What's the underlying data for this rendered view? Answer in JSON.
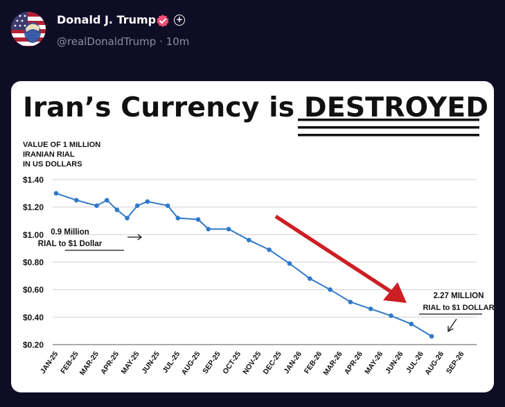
{
  "post": {
    "author_name": "Donald J. Trump",
    "handle": "@realDonaldTrump",
    "separator": "·",
    "time": "10m",
    "avatar_icon": "flag-portrait-avatar",
    "verified_icon": "verified-badge-icon",
    "follow_icon": "plus-circle-icon",
    "colors": {
      "background": "#0f0d26",
      "verified": "#f04e74"
    }
  },
  "infographic": {
    "title_prefix": "Iran’s Currency is ",
    "title_emphasis": "DESTROYED",
    "note_left_line1": "0.9 Million",
    "note_left_line2": "RIAL to $1 Dollar",
    "note_right_line1": "2.27 MILLION",
    "note_right_line2": "RIAL to $1 DOLLAR",
    "trend_arrow_color": "#cc1f24",
    "line_color": "#2f79c8"
  },
  "chart_data": {
    "type": "line",
    "title": "Iran’s Currency is DESTROYED",
    "ylabel_lines": [
      "VALUE OF 1 MILLION",
      "IRANIAN RIAL",
      "IN US DOLLARS"
    ],
    "xlabel": "",
    "ylim": [
      0.2,
      1.4
    ],
    "yticks": [
      1.4,
      1.2,
      1.0,
      0.8,
      0.6,
      0.4,
      0.2
    ],
    "ytick_labels": [
      "$1.40",
      "$1.20",
      "$1.00",
      "$0.80",
      "$0.60",
      "$0.40",
      "$0.20"
    ],
    "grid": true,
    "categories": [
      "JAN-25",
      "FEB-25",
      "MAR-25",
      "APR-25",
      "MAY-25",
      "JUN-25",
      "JUL-25",
      "AUG-25",
      "SEP-25",
      "OCT-25",
      "NOV-25",
      "DEC-25",
      "JAN-26",
      "FEB-26",
      "MAR-26",
      "APR-26",
      "MAY-26",
      "JUN-26",
      "JUL-26",
      "AUG-26",
      "SEP-26"
    ],
    "series": [
      {
        "values": [
          1.3,
          1.25,
          1.21,
          1.25,
          1.18,
          1.12,
          1.21,
          1.24,
          1.21,
          1.12,
          1.11,
          1.04,
          1.04,
          0.96,
          0.89,
          0.79,
          0.68,
          0.6,
          0.51,
          0.46,
          0.41,
          0.35,
          0.26
        ],
        "x": [
          "JAN-25",
          "FEB-25",
          "MAR-25",
          "MAR-25+",
          "APR-25",
          "APR-25+",
          "MAY-25",
          "MAY-25+",
          "JUN-25+",
          "JUL-25",
          "AUG-25",
          "AUG-25+",
          "SEP-25+",
          "OCT-25+",
          "NOV-25+",
          "DEC-25+",
          "JAN-26+",
          "FEB-26+",
          "MAR-26+",
          "APR-26+",
          "MAY-26+",
          "JUN-26+",
          "JUL-26+"
        ]
      }
    ]
  }
}
